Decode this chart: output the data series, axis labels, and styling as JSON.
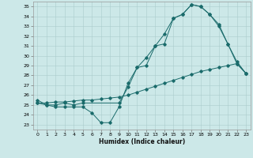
{
  "xlabel": "Humidex (Indice chaleur)",
  "bg_color": "#cce8e8",
  "line_color": "#1a6b6b",
  "xlim": [
    -0.5,
    23.5
  ],
  "ylim": [
    22.5,
    35.5
  ],
  "xticks": [
    0,
    1,
    2,
    3,
    4,
    5,
    6,
    7,
    8,
    9,
    10,
    11,
    12,
    13,
    14,
    15,
    16,
    17,
    18,
    19,
    20,
    21,
    22,
    23
  ],
  "yticks": [
    23,
    24,
    25,
    26,
    27,
    28,
    29,
    30,
    31,
    32,
    33,
    34,
    35
  ],
  "line1_x": [
    0,
    1,
    2,
    3,
    4,
    5,
    6,
    7,
    8,
    9,
    10,
    11,
    12,
    13,
    14,
    15,
    16,
    17,
    18,
    19,
    20,
    21,
    22,
    23
  ],
  "line1_y": [
    25.2,
    25.0,
    24.8,
    24.8,
    24.8,
    24.8,
    24.2,
    23.2,
    23.2,
    24.8,
    27.2,
    28.8,
    29.0,
    31.0,
    31.2,
    33.8,
    34.2,
    35.2,
    35.0,
    34.2,
    33.2,
    31.2,
    29.4,
    28.2
  ],
  "line2_x": [
    0,
    1,
    2,
    3,
    4,
    5,
    6,
    7,
    8,
    9,
    10,
    11,
    12,
    13,
    14,
    15,
    16,
    17,
    18,
    19,
    20,
    21,
    22,
    23
  ],
  "line2_y": [
    25.2,
    25.2,
    25.3,
    25.3,
    25.4,
    25.5,
    25.5,
    25.6,
    25.7,
    25.8,
    26.0,
    26.3,
    26.6,
    26.9,
    27.2,
    27.5,
    27.8,
    28.1,
    28.4,
    28.6,
    28.8,
    29.0,
    29.2,
    28.2
  ],
  "line3_x": [
    0,
    1,
    2,
    3,
    4,
    5,
    9,
    10,
    11,
    12,
    13,
    14,
    15,
    16,
    17,
    18,
    19,
    20,
    21,
    22,
    23
  ],
  "line3_y": [
    25.5,
    25.0,
    25.0,
    25.2,
    25.0,
    25.2,
    25.2,
    26.8,
    28.8,
    29.8,
    31.0,
    32.2,
    33.8,
    34.2,
    35.2,
    35.0,
    34.2,
    33.0,
    31.2,
    29.2,
    28.2
  ]
}
